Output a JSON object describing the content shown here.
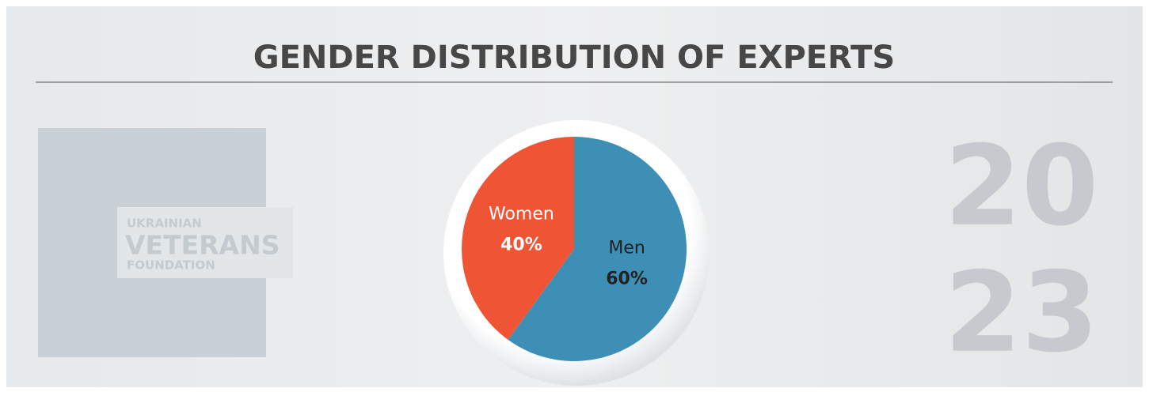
{
  "chart_data": {
    "type": "pie",
    "title": "GENDER DISTRIBUTION OF EXPERTS",
    "categories": [
      "Men",
      "Women"
    ],
    "values": [
      60,
      40
    ],
    "value_labels": [
      "60%",
      "40%"
    ],
    "colors": [
      "#3d8fb6",
      "#ef5534"
    ]
  },
  "logo": {
    "lines": [
      "UKRAINIAN",
      "VETERANS",
      "FOUNDATION"
    ]
  },
  "year": [
    "20",
    "23"
  ]
}
